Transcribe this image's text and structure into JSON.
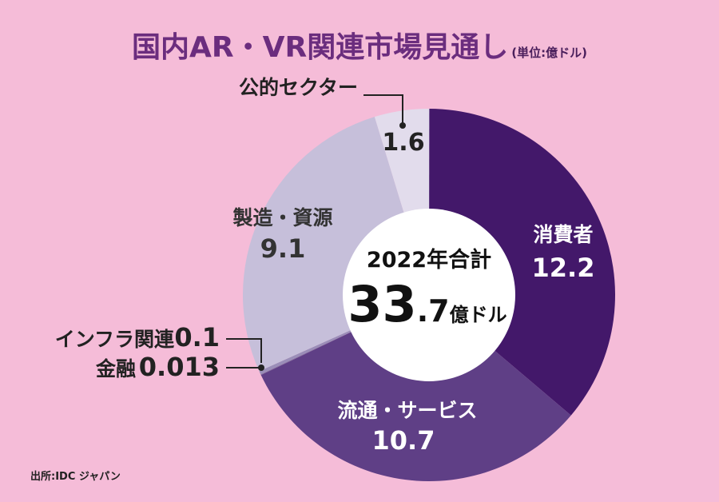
{
  "title": "国内AR・VR関連市場見通し",
  "unit": "(単位:億ドル)",
  "center": {
    "line1": "2022年合計",
    "total_big": "33",
    "total_small": ".7",
    "total_unit": "億ドル"
  },
  "source": "出所:IDC ジャパン",
  "chart_data": {
    "type": "pie",
    "variant": "donut",
    "title": "国内AR・VR関連市場見通し",
    "unit": "億ドル",
    "total": 33.7,
    "slices": [
      {
        "name": "消費者",
        "value": 12.2,
        "value_label": "12.2",
        "color": "#43186a"
      },
      {
        "name": "流通・サービス",
        "value": 10.7,
        "value_label": "10.7",
        "color": "#5f3f86"
      },
      {
        "name": "金融",
        "value": 0.013,
        "value_label": "0.013",
        "color": "#7d6a9c"
      },
      {
        "name": "インフラ関連",
        "value": 0.1,
        "value_label": "0.1",
        "color": "#9a8eb8"
      },
      {
        "name": "製造・資源",
        "value": 9.1,
        "value_label": "9.1",
        "color": "#c6bfda"
      },
      {
        "name": "公的セクター",
        "value": 1.6,
        "value_label": "1.6",
        "color": "#e2dcec"
      }
    ]
  }
}
